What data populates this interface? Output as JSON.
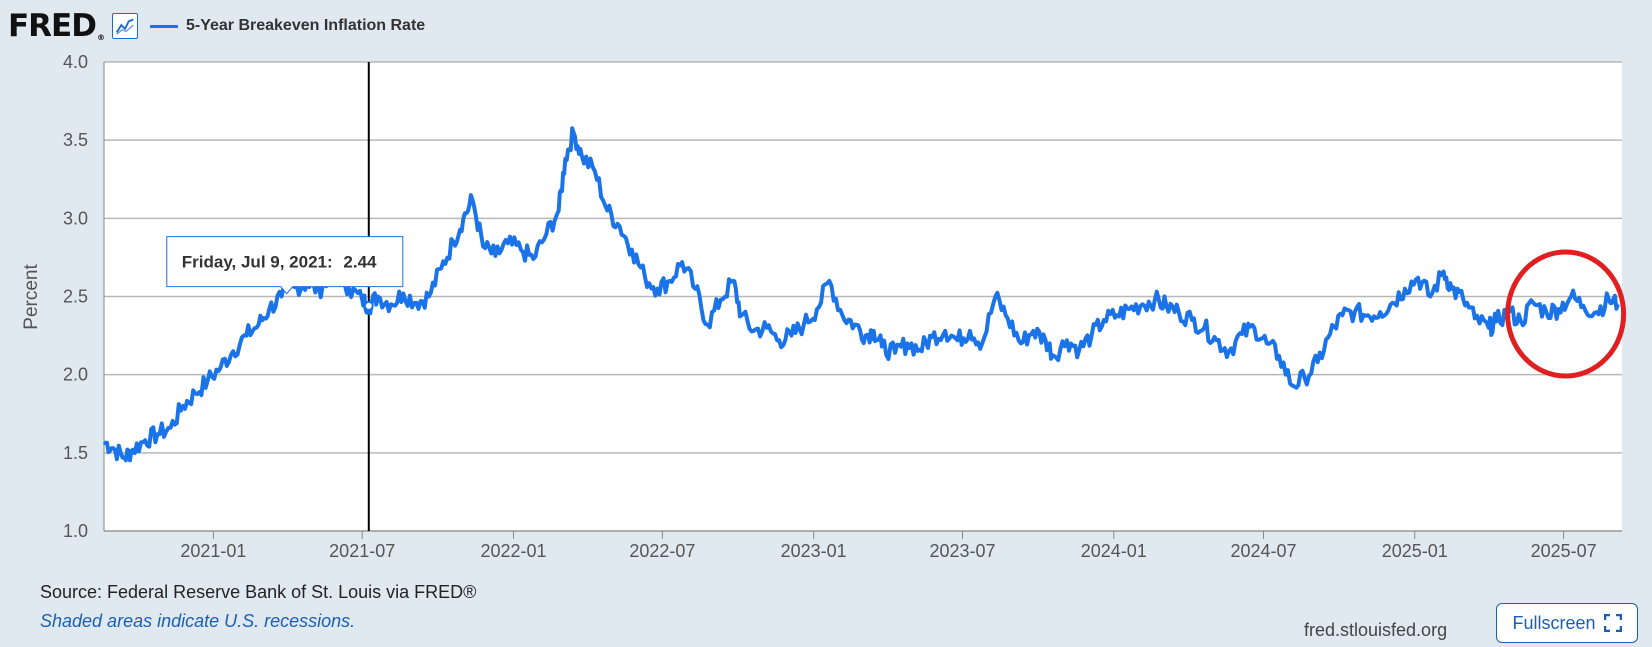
{
  "header": {
    "logo_text": "FRED",
    "logo_reg": "®",
    "graph_icon": "line-graph-icon",
    "series_label": "5-Year Breakeven Inflation Rate"
  },
  "tooltip": {
    "date": "Friday, Jul 9, 2021:",
    "value": "2.44"
  },
  "footer": {
    "source": "Source: Federal Reserve Bank of St. Louis via FRED®",
    "recession_note": "Shaded areas indicate U.S. recessions.",
    "site": "fred.stlouisfed.org",
    "fullscreen_label": "Fullscreen",
    "fullscreen_icon": "expand-icon"
  },
  "colors": {
    "series": "#1a73e8",
    "background": "#e1e9f0",
    "plot_bg": "#ffffff",
    "highlight_circle": "#e02020"
  },
  "chart_data": {
    "type": "line",
    "title": "",
    "xlabel": "",
    "ylabel": "Percent",
    "ylim": [
      1.0,
      4.0
    ],
    "yticks": [
      "1.0",
      "1.5",
      "2.0",
      "2.5",
      "3.0",
      "3.5",
      "4.0"
    ],
    "xlim": [
      "2020-08-21",
      "2025-09-10"
    ],
    "xticks": [
      "2021-01",
      "2021-07",
      "2022-01",
      "2022-07",
      "2023-01",
      "2023-07",
      "2024-01",
      "2024-07",
      "2025-01",
      "2025-07"
    ],
    "grid": "horizontal",
    "legend": "top-left",
    "crosshair_date": "2021-07-09",
    "highlight_region": {
      "date": "2025-07-01",
      "value": 2.42
    },
    "series": [
      {
        "name": "5-Year Breakeven Inflation Rate",
        "x": [
          "2020-08-21",
          "2020-09-01",
          "2020-09-15",
          "2020-09-25",
          "2020-10-10",
          "2020-10-25",
          "2020-11-10",
          "2020-11-25",
          "2020-12-10",
          "2020-12-25",
          "2021-01-10",
          "2021-01-25",
          "2021-02-10",
          "2021-02-25",
          "2021-03-10",
          "2021-03-25",
          "2021-04-10",
          "2021-04-25",
          "2021-05-10",
          "2021-05-20",
          "2021-06-01",
          "2021-06-15",
          "2021-07-01",
          "2021-07-09",
          "2021-07-20",
          "2021-08-05",
          "2021-08-20",
          "2021-09-05",
          "2021-09-20",
          "2021-10-05",
          "2021-10-20",
          "2021-11-01",
          "2021-11-12",
          "2021-11-25",
          "2021-12-10",
          "2021-12-25",
          "2022-01-10",
          "2022-01-25",
          "2022-02-10",
          "2022-02-25",
          "2022-03-05",
          "2022-03-15",
          "2022-03-25",
          "2022-04-10",
          "2022-04-25",
          "2022-05-10",
          "2022-05-25",
          "2022-06-10",
          "2022-06-25",
          "2022-07-10",
          "2022-07-25",
          "2022-08-10",
          "2022-08-25",
          "2022-09-10",
          "2022-09-25",
          "2022-10-05",
          "2022-10-20",
          "2022-11-05",
          "2022-11-20",
          "2022-12-05",
          "2022-12-20",
          "2023-01-05",
          "2023-01-20",
          "2023-02-05",
          "2023-02-20",
          "2023-03-05",
          "2023-03-15",
          "2023-03-25",
          "2023-04-10",
          "2023-04-25",
          "2023-05-10",
          "2023-05-25",
          "2023-06-10",
          "2023-06-25",
          "2023-07-10",
          "2023-07-25",
          "2023-08-10",
          "2023-08-25",
          "2023-09-10",
          "2023-09-25",
          "2023-10-10",
          "2023-10-20",
          "2023-11-05",
          "2023-11-20",
          "2023-12-05",
          "2023-12-20",
          "2024-01-05",
          "2024-01-20",
          "2024-02-05",
          "2024-02-20",
          "2024-03-05",
          "2024-03-20",
          "2024-04-05",
          "2024-04-20",
          "2024-05-05",
          "2024-05-20",
          "2024-06-05",
          "2024-06-20",
          "2024-07-05",
          "2024-07-20",
          "2024-08-05",
          "2024-08-20",
          "2024-09-05",
          "2024-09-20",
          "2024-10-05",
          "2024-10-20",
          "2024-11-05",
          "2024-11-20",
          "2024-12-05",
          "2024-12-20",
          "2025-01-05",
          "2025-01-20",
          "2025-02-05",
          "2025-02-15",
          "2025-03-01",
          "2025-03-15",
          "2025-04-01",
          "2025-04-10",
          "2025-04-25",
          "2025-05-10",
          "2025-05-25",
          "2025-06-10",
          "2025-06-25",
          "2025-07-10",
          "2025-07-25",
          "2025-08-10",
          "2025-08-25",
          "2025-09-05"
        ],
        "values": [
          1.57,
          1.53,
          1.47,
          1.52,
          1.58,
          1.62,
          1.66,
          1.8,
          1.88,
          1.96,
          2.05,
          2.15,
          2.25,
          2.32,
          2.42,
          2.5,
          2.56,
          2.58,
          2.54,
          2.63,
          2.68,
          2.55,
          2.48,
          2.44,
          2.5,
          2.45,
          2.52,
          2.46,
          2.5,
          2.68,
          2.85,
          3.0,
          3.12,
          2.82,
          2.76,
          2.84,
          2.8,
          2.74,
          2.9,
          3.05,
          3.38,
          3.55,
          3.4,
          3.3,
          3.05,
          2.95,
          2.8,
          2.62,
          2.55,
          2.6,
          2.72,
          2.55,
          2.32,
          2.48,
          2.6,
          2.38,
          2.28,
          2.3,
          2.22,
          2.25,
          2.32,
          2.42,
          2.6,
          2.38,
          2.32,
          2.25,
          2.28,
          2.18,
          2.14,
          2.2,
          2.16,
          2.24,
          2.28,
          2.22,
          2.28,
          2.2,
          2.5,
          2.36,
          2.2,
          2.28,
          2.22,
          2.12,
          2.22,
          2.16,
          2.25,
          2.35,
          2.38,
          2.42,
          2.45,
          2.48,
          2.44,
          2.4,
          2.35,
          2.3,
          2.22,
          2.15,
          2.26,
          2.3,
          2.2,
          2.12,
          1.93,
          1.98,
          2.08,
          2.26,
          2.38,
          2.4,
          2.38,
          2.4,
          2.46,
          2.55,
          2.62,
          2.5,
          2.66,
          2.55,
          2.48,
          2.36,
          2.3,
          2.34,
          2.4,
          2.34,
          2.46,
          2.4,
          2.42,
          2.5,
          2.44,
          2.4,
          2.48,
          2.45
        ]
      }
    ]
  }
}
